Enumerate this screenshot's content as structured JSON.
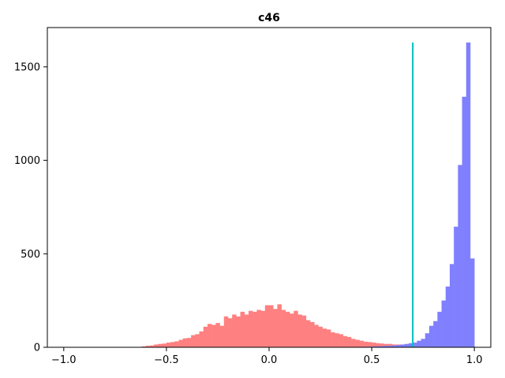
{
  "chart_data": {
    "type": "histogram",
    "title": "c46",
    "xlabel": "",
    "ylabel": "",
    "xlim": [
      -1.08,
      1.08
    ],
    "ylim": [
      0,
      1710
    ],
    "x_ticks": [
      -1.0,
      -0.5,
      0.0,
      0.5,
      1.0
    ],
    "x_tick_labels": [
      "−1.0",
      "−0.5",
      "0.0",
      "0.5",
      "1.0"
    ],
    "y_ticks": [
      0,
      500,
      1000,
      1500
    ],
    "y_tick_labels": [
      "0",
      "500",
      "1000",
      "1500"
    ],
    "grid": false,
    "legend": "none",
    "bin_width": 0.02,
    "threshold_line": {
      "x": 0.7,
      "y_top": 1630,
      "color": "#00bfbf"
    },
    "series": [
      {
        "color": "#ff8080",
        "bins_start": [
          -0.62,
          -0.6,
          -0.58,
          -0.56,
          -0.54,
          -0.52,
          -0.5,
          -0.48,
          -0.46,
          -0.44,
          -0.42,
          -0.4,
          -0.38,
          -0.36,
          -0.34,
          -0.32,
          -0.3,
          -0.28,
          -0.26,
          -0.24,
          -0.22,
          -0.2,
          -0.18,
          -0.16,
          -0.14,
          -0.12,
          -0.1,
          -0.08,
          -0.06,
          -0.04,
          -0.02,
          0.0,
          0.02,
          0.04,
          0.06,
          0.08,
          0.1,
          0.12,
          0.14,
          0.16,
          0.18,
          0.2,
          0.22,
          0.24,
          0.26,
          0.28,
          0.3,
          0.32,
          0.34,
          0.36,
          0.38,
          0.4,
          0.42,
          0.44,
          0.46,
          0.48,
          0.5,
          0.52,
          0.54,
          0.56,
          0.58,
          0.6,
          0.62,
          0.64,
          0.66,
          0.68,
          0.7,
          0.72,
          0.74,
          0.76,
          0.78,
          0.8,
          0.82,
          0.84,
          0.86,
          0.88
        ],
        "values": [
          5,
          8,
          10,
          15,
          18,
          20,
          25,
          28,
          32,
          40,
          48,
          50,
          65,
          70,
          85,
          110,
          125,
          120,
          130,
          115,
          165,
          155,
          175,
          165,
          190,
          175,
          195,
          190,
          200,
          195,
          225,
          225,
          205,
          230,
          200,
          190,
          180,
          195,
          175,
          170,
          145,
          135,
          120,
          110,
          100,
          95,
          80,
          75,
          70,
          60,
          55,
          45,
          40,
          35,
          30,
          28,
          25,
          22,
          20,
          18,
          18,
          15,
          15,
          12,
          12,
          10,
          10,
          10,
          8,
          8,
          6,
          6,
          5,
          5,
          4,
          3
        ]
      },
      {
        "color": "#8080ff",
        "bins_start": [
          0.38,
          0.4,
          0.42,
          0.44,
          0.46,
          0.48,
          0.5,
          0.52,
          0.54,
          0.56,
          0.58,
          0.6,
          0.62,
          0.64,
          0.66,
          0.68,
          0.7,
          0.72,
          0.74,
          0.76,
          0.78,
          0.8,
          0.82,
          0.84,
          0.86,
          0.88,
          0.9,
          0.92,
          0.94,
          0.96,
          0.98
        ],
        "values": [
          1,
          1,
          2,
          2,
          3,
          3,
          4,
          5,
          6,
          7,
          8,
          10,
          12,
          15,
          18,
          22,
          25,
          35,
          45,
          75,
          115,
          140,
          190,
          250,
          325,
          445,
          645,
          975,
          1340,
          1630,
          475
        ]
      }
    ]
  }
}
